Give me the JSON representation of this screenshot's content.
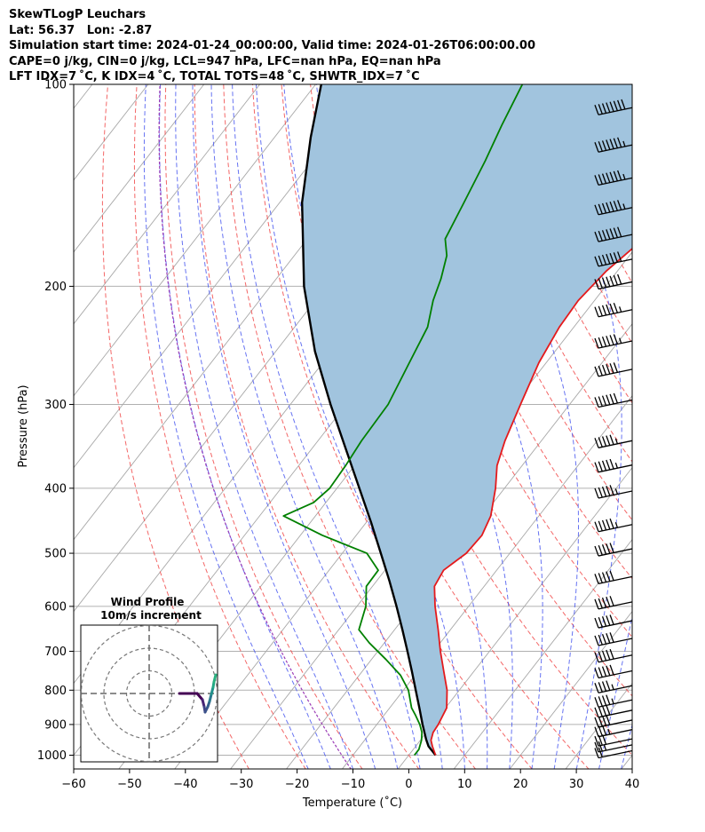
{
  "header": {
    "line1": "SkewTLogP Leuchars",
    "line2": "Lat: 56.37   Lon: -2.87",
    "line3": "Simulation start time: 2024-01-24_00:00:00, Valid time: 2024-01-26T06:00:00.00",
    "line4": "CAPE=0 j/kg, CIN=0 j/kg, LCL=947 hPa, LFC=nan hPa, EQ=nan hPa",
    "line5": "LFT IDX=7 ˚C, K IDX=4 ˚C, TOTAL TOTS=48 ˚C, SHWTR_IDX=7 ˚C"
  },
  "chart_data": {
    "type": "line",
    "subtype": "skew-T log-p diagram",
    "xlabel": "Temperature (˚C)",
    "ylabel": "Pressure (hPa)",
    "xlim": [
      -60,
      40
    ],
    "ylim": [
      1050,
      100
    ],
    "y_scale": "log",
    "x_ticks": [
      -60,
      -50,
      -40,
      -30,
      -20,
      -10,
      0,
      10,
      20,
      30,
      40
    ],
    "x_tick_labels": [
      "−60",
      "−50",
      "−40",
      "−30",
      "−20",
      "−10",
      "0",
      "10",
      "20",
      "30",
      "40"
    ],
    "y_ticks": [
      1000,
      900,
      800,
      700,
      600,
      500,
      400,
      300,
      200,
      100
    ],
    "grid": true,
    "series": [
      {
        "role": "temperature",
        "color": "#e41a1c",
        "pressure": [
          1000,
          970,
          950,
          925,
          900,
          850,
          800,
          750,
          700,
          650,
          600,
          560,
          530,
          500,
          470,
          440,
          400,
          370,
          340,
          300,
          260,
          230,
          210,
          190,
          170,
          150,
          130,
          115,
          100
        ],
        "values": [
          4.8,
          3.0,
          1.9,
          1.2,
          1.0,
          0.2,
          -2.2,
          -5.4,
          -8.8,
          -12.2,
          -16.0,
          -18.9,
          -19.5,
          -17.8,
          -17.5,
          -18.6,
          -21.6,
          -24.5,
          -26.5,
          -28.8,
          -31.3,
          -32.6,
          -32.9,
          -32.0,
          -29.8,
          -26.1,
          -20.9,
          -16.0,
          -10.0
        ]
      },
      {
        "role": "dewpoint",
        "color": "#008000",
        "pressure": [
          1000,
          980,
          950,
          925,
          900,
          870,
          850,
          800,
          760,
          720,
          680,
          650,
          600,
          560,
          530,
          500,
          470,
          440,
          420,
          400,
          370,
          340,
          300,
          260,
          230,
          210,
          195,
          180,
          170,
          150,
          130,
          115,
          100
        ],
        "values": [
          1.0,
          1.0,
          0.2,
          -0.8,
          -2.3,
          -4.5,
          -6.1,
          -9.1,
          -12.6,
          -17.4,
          -22.7,
          -26.4,
          -28.4,
          -31.1,
          -31.2,
          -35.6,
          -46.1,
          -55.7,
          -52.2,
          -51.3,
          -51.6,
          -52.2,
          -52.5,
          -54.5,
          -56.2,
          -58.9,
          -60.5,
          -62.7,
          -65.3,
          -67.0,
          -69.0,
          -71.0,
          -73.0
        ]
      },
      {
        "role": "parcel",
        "color": "#000000",
        "pressure": [
          1000,
          970,
          947,
          900,
          850,
          800,
          750,
          700,
          650,
          600,
          550,
          500,
          450,
          400,
          350,
          300,
          250,
          200,
          150,
          120,
          100
        ],
        "values": [
          4.8,
          2.3,
          0.9,
          -1.8,
          -4.7,
          -7.8,
          -11.1,
          -14.7,
          -18.6,
          -22.9,
          -27.7,
          -33.1,
          -39.1,
          -46.0,
          -53.8,
          -62.8,
          -73.0,
          -84.0,
          -96.0,
          -103.5,
          -109.0
        ]
      }
    ],
    "cin_shading": {
      "color": "#a1c4de",
      "between": [
        "parcel",
        "temperature"
      ]
    },
    "wind_barbs": {
      "side": "right",
      "pressure": [
        1000,
        980,
        960,
        930,
        900,
        870,
        840,
        800,
        760,
        720,
        680,
        640,
        600,
        550,
        500,
        460,
        410,
        375,
        345,
        300,
        270,
        245,
        220,
        200,
        185,
        170,
        155,
        140,
        125,
        110
      ],
      "speed_kt": [
        20,
        25,
        30,
        35,
        40,
        40,
        45,
        45,
        50,
        50,
        50,
        50,
        50,
        50,
        50,
        55,
        55,
        55,
        55,
        60,
        60,
        65,
        65,
        70,
        70,
        70,
        75,
        75,
        75,
        80
      ]
    },
    "inset": {
      "title_line1": "Wind Profile",
      "title_line2": "10m/s increment",
      "rings_m_s": [
        10,
        20,
        30
      ]
    }
  }
}
